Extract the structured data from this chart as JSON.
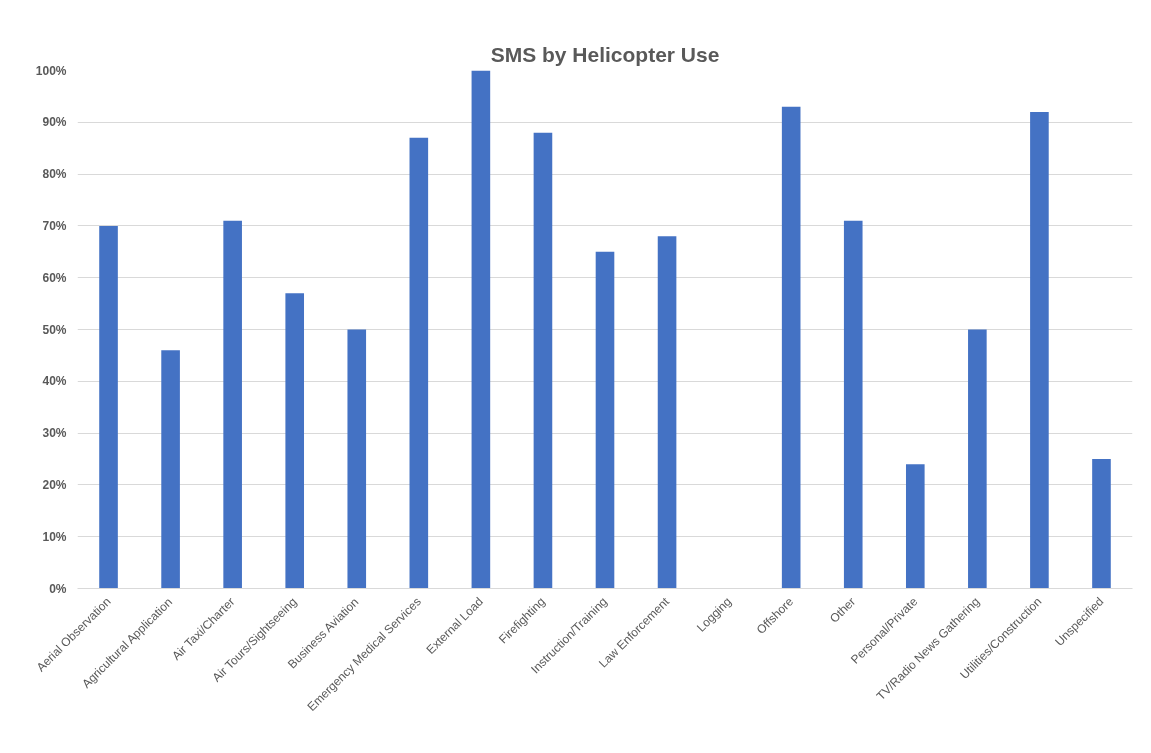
{
  "chart_data": {
    "type": "bar",
    "title": "SMS by Helicopter Use",
    "categories": [
      "Aerial Observation",
      "Agricultural Application",
      "Air Taxi/Charter",
      "Air Tours/Sightseeing",
      "Business Aviation",
      "Emergency Medical Services",
      "External Load",
      "Firefighting",
      "Instruction/Training",
      "Law Enforcement",
      "Logging",
      "Offshore",
      "Other",
      "Personal/Private",
      "TV/Radio News Gathering",
      "Utilities/Construction",
      "Unspecified"
    ],
    "values": [
      70,
      46,
      71,
      57,
      50,
      87,
      100,
      88,
      65,
      68,
      0,
      93,
      71,
      24,
      50,
      92,
      25
    ],
    "color": "#4472c4",
    "ylim": [
      0,
      100
    ],
    "yticks": [
      {
        "value": 0,
        "label": "0%"
      },
      {
        "value": 10,
        "label": "10%"
      },
      {
        "value": 20,
        "label": "20%"
      },
      {
        "value": 30,
        "label": "30%"
      },
      {
        "value": 40,
        "label": "40%"
      },
      {
        "value": 50,
        "label": "50%"
      },
      {
        "value": 60,
        "label": "60%"
      },
      {
        "value": 70,
        "label": "70%"
      },
      {
        "value": 80,
        "label": "80%"
      },
      {
        "value": 90,
        "label": "90%"
      },
      {
        "value": 100,
        "label": "100%"
      }
    ],
    "grid": "y"
  }
}
